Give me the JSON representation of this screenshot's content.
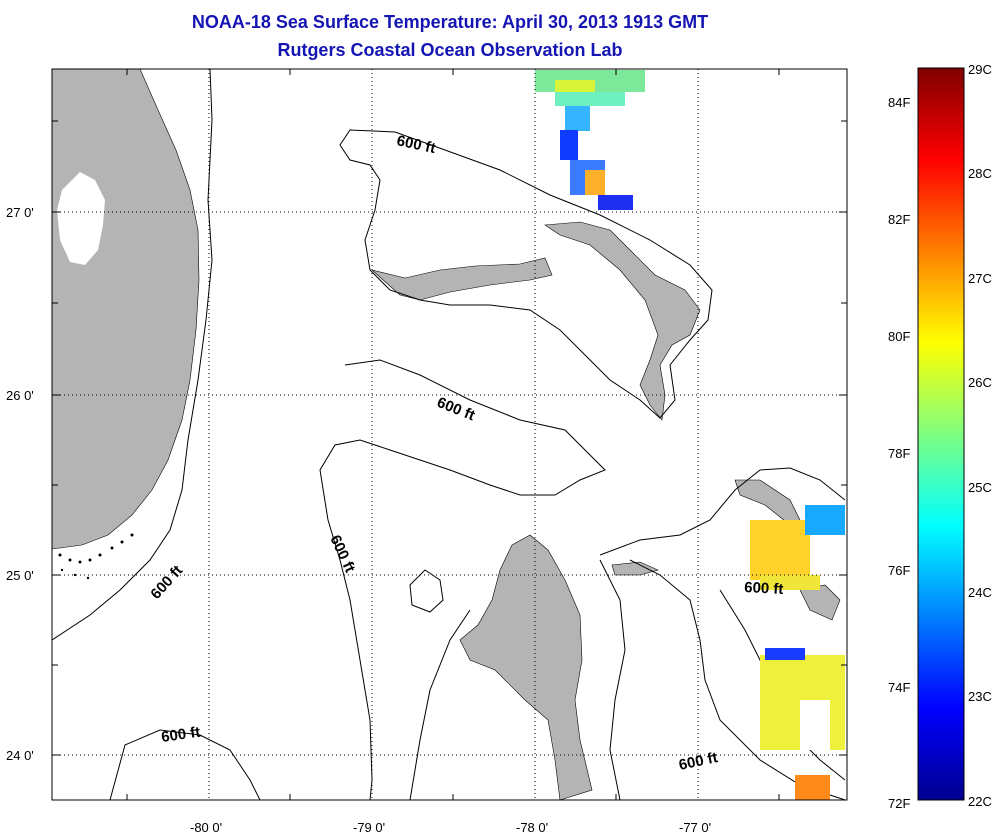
{
  "title": "NOAA-18 Sea Surface Temperature:  April 30, 2013 1913 GMT",
  "subtitle": "Rutgers Coastal Ocean Observation Lab",
  "lon_labels": [
    "-80 0'",
    "-79 0'",
    "-78 0'",
    "-77 0'"
  ],
  "lat_labels": [
    "27 0'",
    "26 0'",
    "25 0'",
    "24 0'"
  ],
  "contour_labels": [
    "600 ft",
    "600 ft",
    "600 ft",
    "600 ft",
    "600 ft",
    "600 ft"
  ],
  "colorbar": {
    "f_labels": [
      "84F",
      "82F",
      "80F",
      "78F",
      "76F",
      "74F",
      "72F"
    ],
    "c_labels": [
      "29C",
      "28C",
      "27C",
      "26C",
      "25C",
      "24C",
      "23C",
      "22C"
    ]
  },
  "colors": {
    "title": "#1515b4",
    "land": "#b4b4b4",
    "grid": "#000000",
    "contour": "#000000"
  }
}
